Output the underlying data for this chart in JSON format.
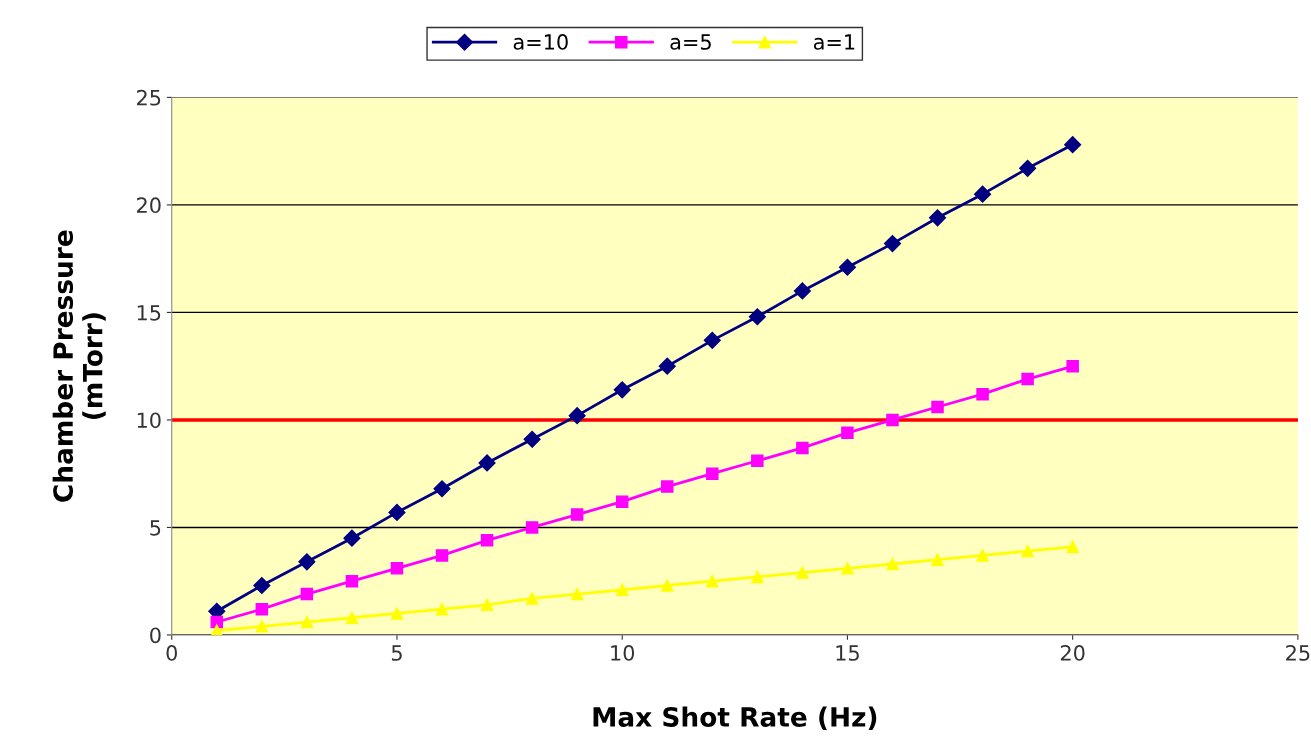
{
  "chart_data": {
    "type": "line",
    "xlabel": "Max Shot Rate (Hz)",
    "ylabel": "Chamber Pressure\n(mTorr)",
    "x": [
      1,
      2,
      3,
      4,
      5,
      6,
      7,
      8,
      9,
      10,
      11,
      12,
      13,
      14,
      15,
      16,
      17,
      18,
      19,
      20
    ],
    "series": [
      {
        "name": "a=10",
        "color": "#000080",
        "marker": "diamond",
        "values": [
          1.1,
          2.3,
          3.4,
          4.5,
          5.7,
          6.8,
          8.0,
          9.1,
          10.2,
          11.4,
          12.5,
          13.7,
          14.8,
          16.0,
          17.1,
          18.2,
          19.4,
          20.5,
          21.7,
          22.8
        ]
      },
      {
        "name": "a=5",
        "color": "#ff00ff",
        "marker": "square",
        "values": [
          0.6,
          1.2,
          1.9,
          2.5,
          3.1,
          3.7,
          4.4,
          5.0,
          5.6,
          6.2,
          6.9,
          7.5,
          8.1,
          8.7,
          9.4,
          10.0,
          10.6,
          11.2,
          11.9,
          12.5
        ]
      },
      {
        "name": "a=1",
        "color": "#ffff00",
        "marker": "triangle",
        "values": [
          0.2,
          0.4,
          0.6,
          0.8,
          1.0,
          1.2,
          1.4,
          1.7,
          1.9,
          2.1,
          2.3,
          2.5,
          2.7,
          2.9,
          3.1,
          3.3,
          3.5,
          3.7,
          3.9,
          4.1
        ]
      }
    ],
    "xlim": [
      0,
      25
    ],
    "xticks": [
      0,
      5,
      10,
      15,
      20,
      25
    ],
    "ylim": [
      0,
      25
    ],
    "yticks": [
      0,
      5,
      10,
      15,
      20,
      25
    ],
    "grid": "y",
    "legend": "top",
    "line_style": "solid",
    "ref_lines": [
      {
        "axis": "y",
        "value": 10,
        "color": "#ff0000",
        "line_style": "solid"
      }
    ]
  }
}
